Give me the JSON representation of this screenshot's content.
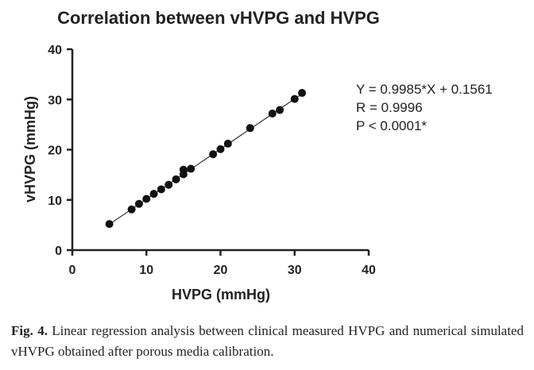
{
  "chart_data": {
    "type": "scatter",
    "title": "Correlation between  vHVPG and HVPG",
    "xlabel": "HVPG (mmHg)",
    "ylabel": "vHVPG (mmHg)",
    "xlim": [
      0,
      40
    ],
    "ylim": [
      0,
      40
    ],
    "xticks": [
      0,
      10,
      20,
      30,
      40
    ],
    "yticks": [
      0,
      10,
      20,
      30,
      40
    ],
    "grid": false,
    "points": [
      {
        "x": 5,
        "y": 5.2
      },
      {
        "x": 8,
        "y": 8.1
      },
      {
        "x": 9,
        "y": 9.2
      },
      {
        "x": 10,
        "y": 10.2
      },
      {
        "x": 11,
        "y": 11.2
      },
      {
        "x": 12,
        "y": 12.1
      },
      {
        "x": 13,
        "y": 13.0
      },
      {
        "x": 14,
        "y": 14.1
      },
      {
        "x": 15,
        "y": 15.1
      },
      {
        "x": 15,
        "y": 16.0
      },
      {
        "x": 16,
        "y": 16.2
      },
      {
        "x": 19,
        "y": 19.1
      },
      {
        "x": 20,
        "y": 20.1
      },
      {
        "x": 21,
        "y": 21.2
      },
      {
        "x": 24,
        "y": 24.3
      },
      {
        "x": 27,
        "y": 27.2
      },
      {
        "x": 28,
        "y": 27.9
      },
      {
        "x": 30,
        "y": 30.1
      },
      {
        "x": 31,
        "y": 31.3
      }
    ],
    "fit_line": {
      "slope": 0.9985,
      "intercept": 0.1561,
      "x_range": [
        5,
        31
      ]
    },
    "annotations": [
      "Y = 0.9985*X + 0.1561",
      "R = 0.9996",
      "P < 0.0001*"
    ]
  },
  "caption": {
    "label": "Fig. 4.",
    "text": " Linear regression analysis between clinical measured HVPG and numerical simulated vHVPG obtained after porous media calibration."
  }
}
